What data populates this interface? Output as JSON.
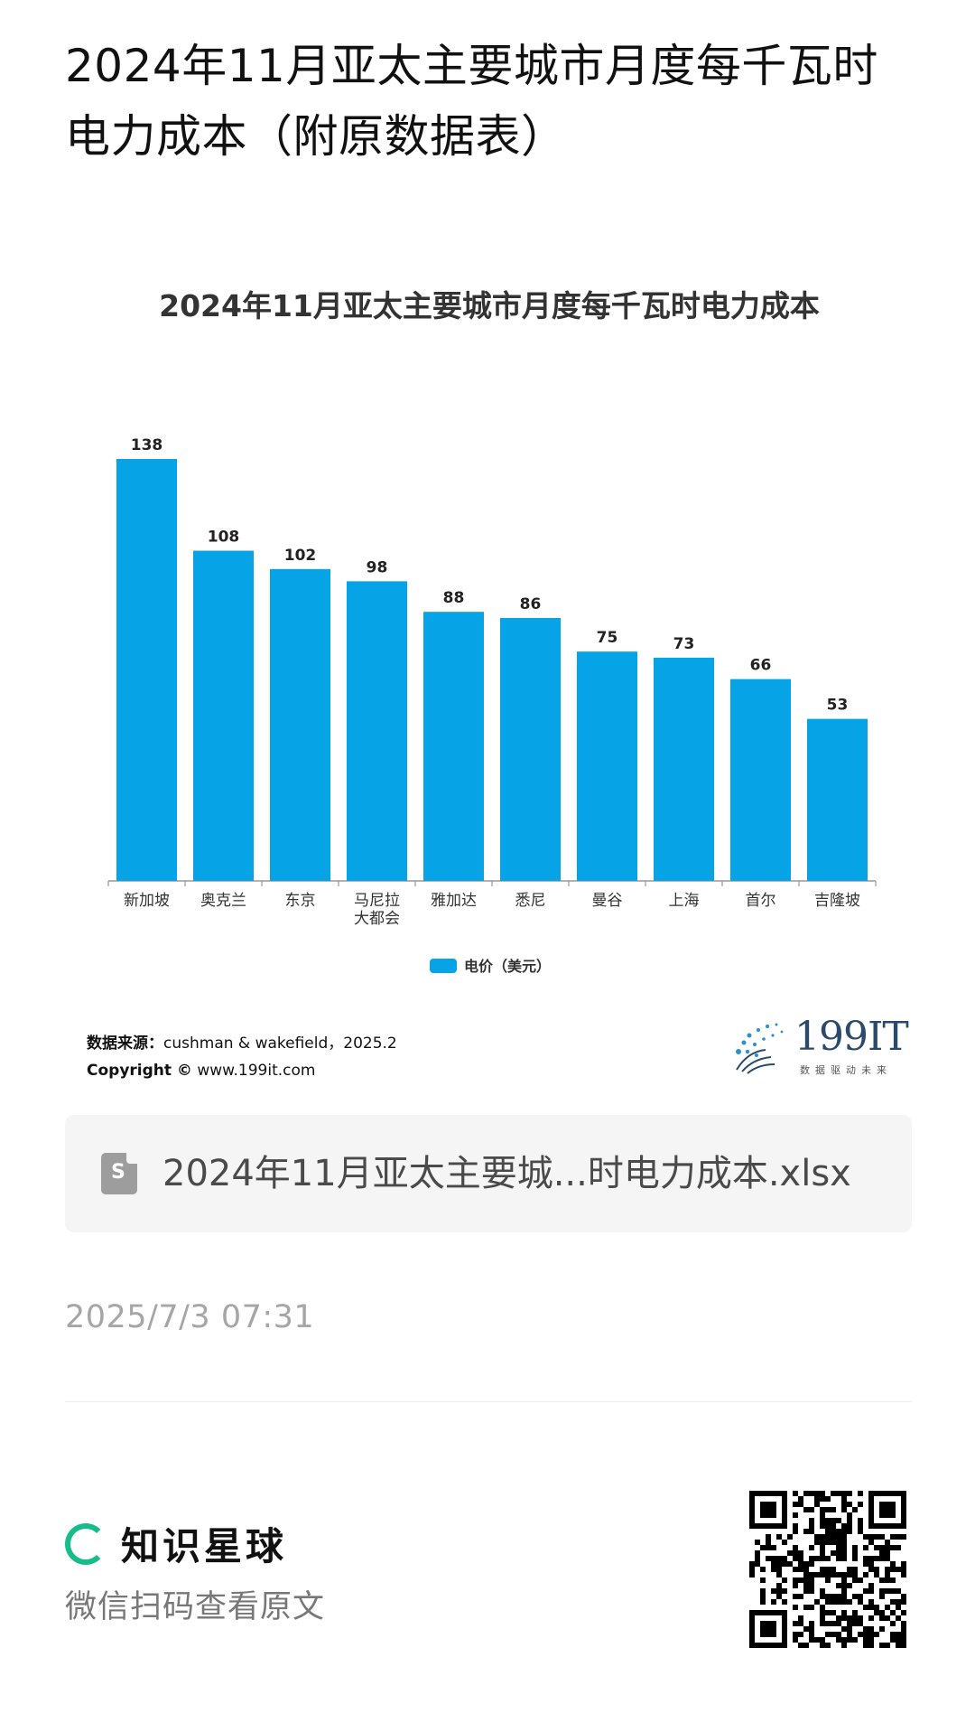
{
  "page": {
    "title": "2024年11月亚太主要城市月度每千瓦时电力成本（附原数据表）"
  },
  "chart_data": {
    "type": "bar",
    "title": "2024年11月亚太主要城市月度每千瓦时电力成本",
    "categories": [
      "新加坡",
      "奥克兰",
      "东京",
      "马尼拉\n大都会",
      "雅加达",
      "悉尼",
      "曼谷",
      "上海",
      "首尔",
      "吉隆坡"
    ],
    "series": [
      {
        "name": "电价（美元）",
        "values": [
          138,
          108,
          102,
          98,
          88,
          86,
          75,
          73,
          66,
          53
        ],
        "color": "#06a3e6"
      }
    ],
    "xlabel": "",
    "ylabel": "",
    "ylim": [
      0,
      140
    ],
    "grid": false,
    "legend": "bottom"
  },
  "source": {
    "label": "数据来源：",
    "text": "cushman & wakefield，2025.2",
    "copyright_label": "Copyright ©",
    "copyright_site": "www.199it.com"
  },
  "logo": {
    "name": "199IT",
    "tagline": "数据驱动未来"
  },
  "attachment": {
    "icon": "spreadsheet-file-icon",
    "icon_letter": "S",
    "name": "2024年11月亚太主要城...时电力成本.xlsx"
  },
  "timestamp": "2025/7/3 07:31",
  "footer": {
    "brand_name": "知识星球",
    "brand_icon": "ring-logo-icon",
    "scan_hint": "微信扫码查看原文",
    "qr_icon": "qr-code-icon"
  },
  "colors": {
    "bar": "#06a3e6",
    "brand_green": "#16bd8a"
  }
}
